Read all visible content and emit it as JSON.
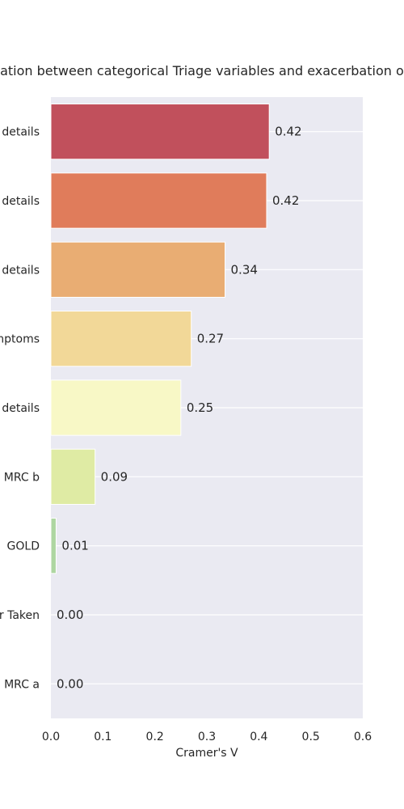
{
  "chart_data": {
    "type": "bar",
    "orientation": "horizontal",
    "title": "ation between categorical Triage variables and exacerbation ou",
    "xlabel": "Cramer's V",
    "ylabel": "",
    "xlim": [
      0,
      0.6
    ],
    "xticks": [
      "0.0",
      "0.1",
      "0.2",
      "0.3",
      "0.4",
      "0.5",
      "0.6"
    ],
    "grid": true,
    "categories": [
      " details",
      " details",
      " details",
      "mptoms",
      " details",
      "MRC b",
      "GOLD",
      "r Taken",
      "MRC a"
    ],
    "values": [
      0.42,
      0.415,
      0.335,
      0.27,
      0.25,
      0.085,
      0.01,
      0.0,
      0.0
    ],
    "value_labels": [
      "0.42",
      "0.42",
      "0.34",
      "0.27",
      "0.25",
      "0.09",
      "0.01",
      "0.00",
      "0.00"
    ],
    "colors": [
      "#c1505c",
      "#e07c5b",
      "#e9ad73",
      "#f2d898",
      "#f8f8c6",
      "#dfeba4",
      "#aed6a1",
      "#7ab7a6",
      "#5a8bbd"
    ]
  }
}
